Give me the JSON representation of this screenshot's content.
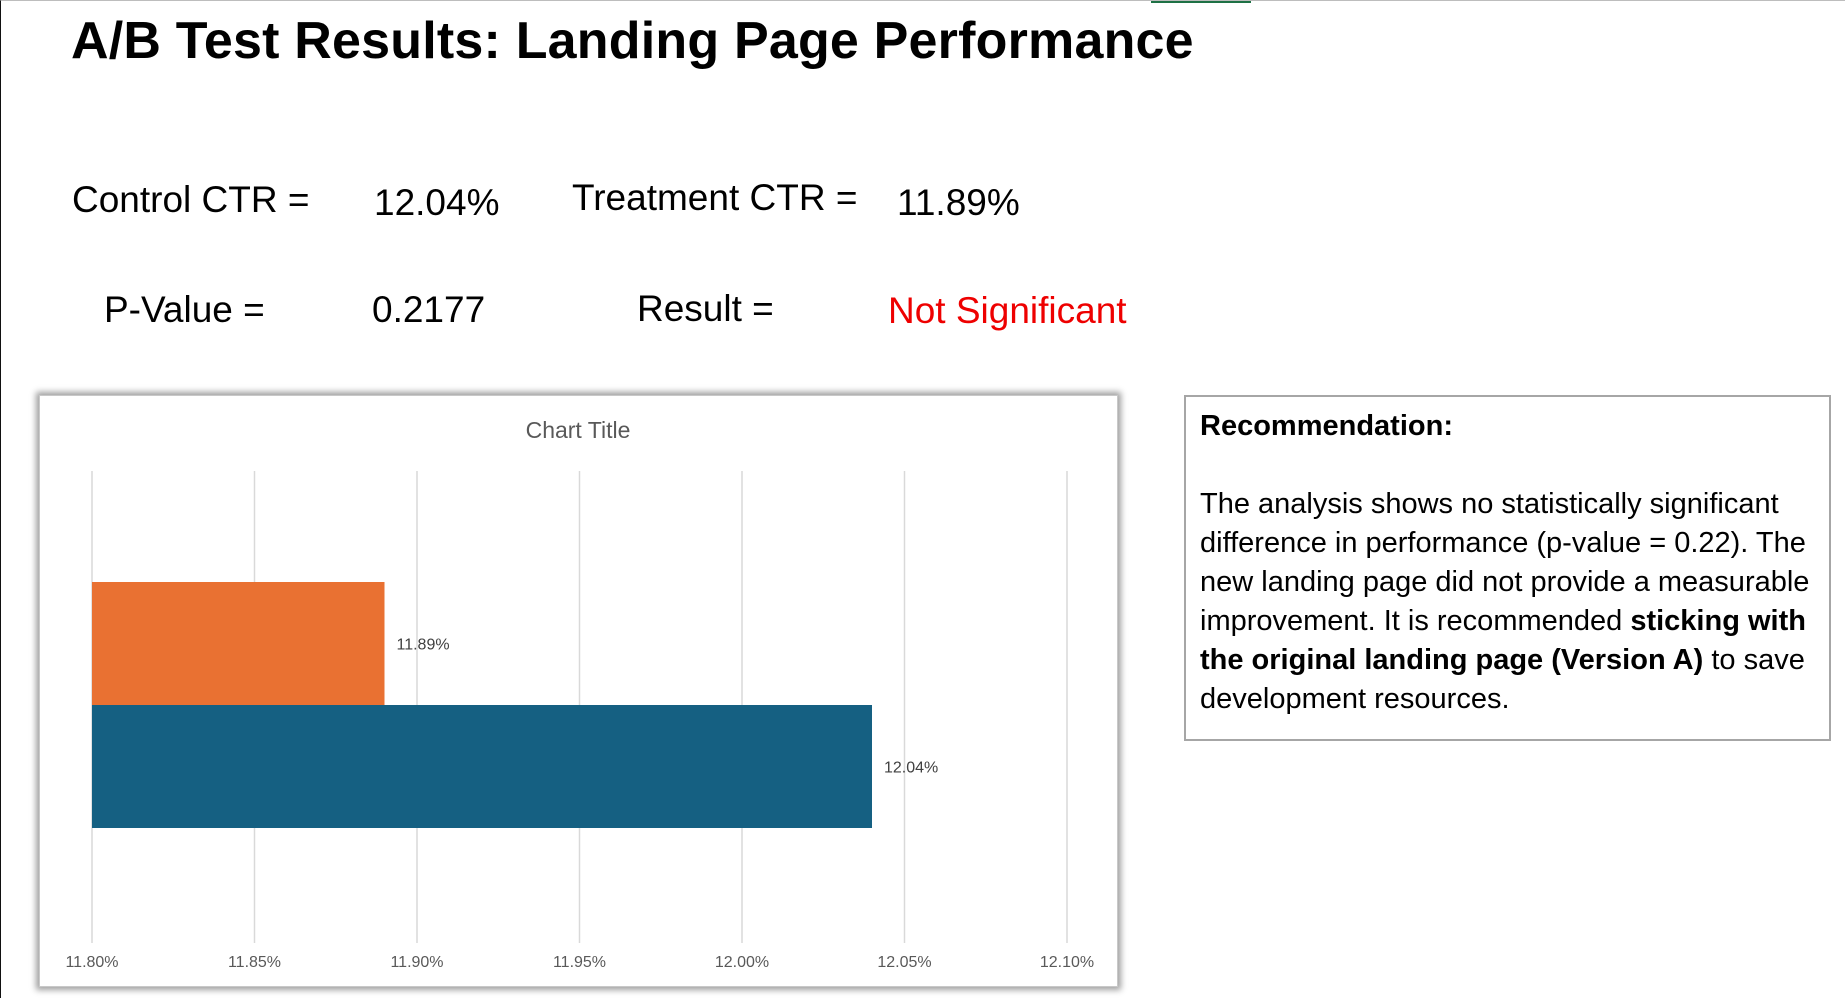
{
  "title": "A/B Test Results: Landing Page Performance",
  "metrics": {
    "control_label": "Control CTR =",
    "control_value": "12.04%",
    "treatment_label": "Treatment CTR =",
    "treatment_value": "11.89%",
    "pvalue_label": "P-Value =",
    "pvalue_value": "0.2177",
    "result_label": "Result =",
    "result_value": "Not Significant"
  },
  "colors": {
    "result_text": "#ee0000",
    "bar_treatment": "#e97132",
    "bar_control": "#156082",
    "gridline": "#d9d9d9"
  },
  "chart_data": {
    "type": "bar",
    "orientation": "horizontal",
    "title": "Chart Title",
    "xlabel": "",
    "ylabel": "",
    "xlim": [
      0.118,
      0.121
    ],
    "x_ticks": [
      0.118,
      0.1185,
      0.119,
      0.1195,
      0.12,
      0.1205,
      0.121
    ],
    "x_tick_labels": [
      "11.80%",
      "11.85%",
      "11.90%",
      "11.95%",
      "12.00%",
      "12.05%",
      "12.10%"
    ],
    "grid": "vertical",
    "legend": "none",
    "bars": [
      {
        "value": 0.1189,
        "label": "11.89%",
        "color": "#e97132"
      },
      {
        "value": 0.1204,
        "label": "12.04%",
        "color": "#156082"
      }
    ]
  },
  "recommendation": {
    "heading": "Recommendation:",
    "text_before": "The analysis shows no statistically significant difference in performance (p-value = 0.22). The new landing page did not provide a measurable improvement. It is recommended ",
    "text_bold": "sticking with the original landing page (Version A)",
    "text_after": " to save development resources."
  }
}
